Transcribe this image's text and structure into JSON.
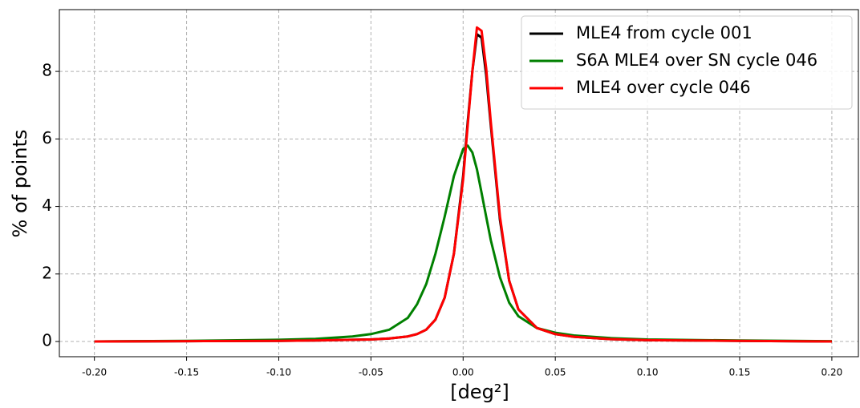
{
  "chart_data": {
    "type": "line",
    "xlabel": "[deg²]",
    "ylabel": "% of points",
    "x": [
      -0.2,
      -0.15,
      -0.1,
      -0.08,
      -0.06,
      -0.05,
      -0.04,
      -0.03,
      -0.025,
      -0.02,
      -0.015,
      -0.01,
      -0.005,
      0,
      0.0025,
      0.005,
      0.0075,
      0.01,
      0.0125,
      0.015,
      0.02,
      0.025,
      0.03,
      0.04,
      0.05,
      0.06,
      0.08,
      0.1,
      0.15,
      0.2
    ],
    "series": [
      {
        "name": "MLE4 from cycle 001",
        "color": "#000000",
        "values": [
          0,
          0.01,
          0.02,
          0.03,
          0.05,
          0.06,
          0.09,
          0.15,
          0.22,
          0.35,
          0.65,
          1.3,
          2.6,
          4.9,
          6.5,
          8.0,
          9.1,
          9.0,
          7.9,
          6.4,
          3.6,
          1.8,
          0.95,
          0.4,
          0.22,
          0.14,
          0.07,
          0.04,
          0.02,
          0
        ]
      },
      {
        "name": "S6A MLE4 over SN cycle 046",
        "color": "#008000",
        "values": [
          0,
          0.02,
          0.05,
          0.08,
          0.15,
          0.22,
          0.35,
          0.7,
          1.1,
          1.7,
          2.6,
          3.7,
          4.9,
          5.7,
          5.8,
          5.6,
          5.1,
          4.4,
          3.7,
          3.0,
          1.9,
          1.15,
          0.75,
          0.4,
          0.26,
          0.18,
          0.1,
          0.06,
          0.03,
          0.01
        ]
      },
      {
        "name": "MLE4 over cycle 046",
        "color": "#ff0000",
        "values": [
          0,
          0.01,
          0.02,
          0.03,
          0.05,
          0.06,
          0.09,
          0.15,
          0.22,
          0.35,
          0.65,
          1.3,
          2.6,
          4.8,
          6.4,
          8.0,
          9.3,
          9.2,
          8.1,
          6.5,
          3.7,
          1.8,
          0.95,
          0.4,
          0.22,
          0.14,
          0.07,
          0.04,
          0.02,
          0
        ]
      }
    ],
    "xlim": [
      -0.219,
      0.2144
    ],
    "ylim": [
      -0.45,
      9.83
    ],
    "xticks": [
      {
        "value": -0.2,
        "label": "-0.20"
      },
      {
        "value": -0.15,
        "label": "-0.15"
      },
      {
        "value": -0.1,
        "label": "-0.10"
      },
      {
        "value": -0.05,
        "label": "-0.05"
      },
      {
        "value": 0,
        "label": "0.00"
      },
      {
        "value": 0.05,
        "label": "0.05"
      },
      {
        "value": 0.1,
        "label": "0.10"
      },
      {
        "value": 0.15,
        "label": "0.15"
      },
      {
        "value": 0.2,
        "label": "0.20"
      }
    ],
    "yticks": [
      0,
      2,
      4,
      6,
      8
    ],
    "grid": true,
    "legend": "upper right"
  }
}
